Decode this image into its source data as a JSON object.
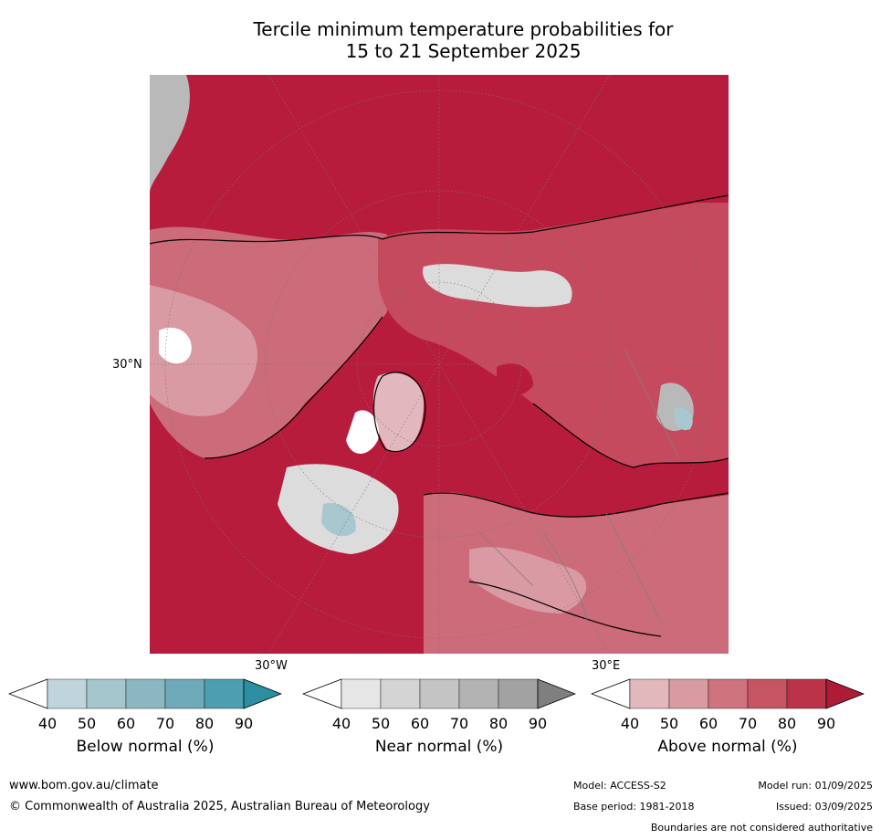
{
  "title": {
    "line1": "Tercile minimum temperature probabilities for",
    "line2": "15 to 21 September 2025"
  },
  "map": {
    "lat_label": "30°N",
    "lon_labels": [
      "30°W",
      "30°E"
    ],
    "colors": {
      "ocean_warm": "#b81c3c",
      "above_80": "#c54a5e",
      "above_70": "#cc6b79",
      "above_60": "#d99aa3",
      "above_50": "#e2b8be",
      "near_50": "#dcdcdc",
      "near_70": "#b9b9b9",
      "below_50": "#a8c8d0",
      "coast": "#000000",
      "border": "#808080"
    }
  },
  "colorbars": [
    {
      "label": "Below normal (%)",
      "ticks": [
        "40",
        "50",
        "60",
        "70",
        "80",
        "90"
      ],
      "colors": [
        "#ffffff",
        "#bfd5db",
        "#a5c6cd",
        "#8ab7c0",
        "#6eaab7",
        "#4c9fb0",
        "#2c8ea3"
      ]
    },
    {
      "label": "Near normal (%)",
      "ticks": [
        "40",
        "50",
        "60",
        "70",
        "80",
        "90"
      ],
      "colors": [
        "#ffffff",
        "#e6e6e6",
        "#d4d4d4",
        "#c4c4c4",
        "#b3b3b3",
        "#a2a2a2",
        "#7f7f7f"
      ]
    },
    {
      "label": "Above normal (%)",
      "ticks": [
        "40",
        "50",
        "60",
        "70",
        "80",
        "90"
      ],
      "colors": [
        "#ffffff",
        "#e3b8bd",
        "#d99aa1",
        "#cf737e",
        "#c65562",
        "#bb3349",
        "#ad1b36"
      ]
    }
  ],
  "footer": {
    "url": "www.bom.gov.au/climate",
    "copyright": "© Commonwealth of Australia 2025, Australian Bureau of Meteorology",
    "model": "Model: ACCESS-S2",
    "model_run": "Model run: 01/09/2025",
    "base_period": "Base period: 1981-2018",
    "issued": "Issued: 03/09/2025",
    "disclaimer": "Boundaries are not considered authoritative"
  }
}
